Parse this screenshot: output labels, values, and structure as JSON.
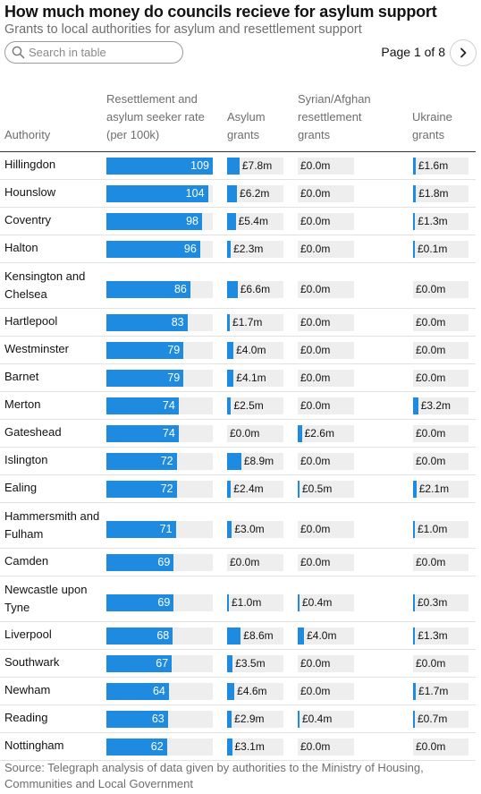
{
  "title": "How much money do councils recieve for asylum support",
  "subtitle": "Grants to local authorities for asylum and resettlement support",
  "search": {
    "placeholder": "Search in table"
  },
  "pagination": {
    "label": "Page 1 of 8"
  },
  "icons": {
    "search": "search-icon",
    "next": "chevron-right-icon"
  },
  "colors": {
    "bar": "#1f8be0",
    "track": "#eeeeee",
    "text": "#121212",
    "muted": "#6e6e6e"
  },
  "columns": {
    "authority": "Authority",
    "rate": [
      "Resettlement and",
      "asylum seeker rate",
      "(per 100k)"
    ],
    "asylum": [
      "Asylum",
      "grants"
    ],
    "syrian": [
      "Syrian/Afghan",
      "resettlement",
      "grants"
    ],
    "ukraine": [
      "Ukraine",
      "grants"
    ]
  },
  "table": {
    "rate_max": 109,
    "grant_max": 9.0,
    "rows": [
      {
        "authority": "Hillingdon",
        "rate": 109,
        "asylum": 7.8,
        "syrian": 0.0,
        "ukraine": 1.6
      },
      {
        "authority": "Hounslow",
        "rate": 104,
        "asylum": 6.2,
        "syrian": 0.0,
        "ukraine": 1.8
      },
      {
        "authority": "Coventry",
        "rate": 98,
        "asylum": 5.4,
        "syrian": 0.0,
        "ukraine": 1.3
      },
      {
        "authority": "Halton",
        "rate": 96,
        "asylum": 2.3,
        "syrian": 0.0,
        "ukraine": 0.1
      },
      {
        "authority": "Kensington and Chelsea",
        "rate": 86,
        "asylum": 6.6,
        "syrian": 0.0,
        "ukraine": 0.0
      },
      {
        "authority": "Hartlepool",
        "rate": 83,
        "asylum": 1.7,
        "syrian": 0.0,
        "ukraine": 0.0
      },
      {
        "authority": "Westminster",
        "rate": 79,
        "asylum": 4.0,
        "syrian": 0.0,
        "ukraine": 0.0
      },
      {
        "authority": "Barnet",
        "rate": 79,
        "asylum": 4.1,
        "syrian": 0.0,
        "ukraine": 0.0
      },
      {
        "authority": "Merton",
        "rate": 74,
        "asylum": 2.5,
        "syrian": 0.0,
        "ukraine": 3.2
      },
      {
        "authority": "Gateshead",
        "rate": 74,
        "asylum": 0.0,
        "syrian": 2.6,
        "ukraine": 0.0
      },
      {
        "authority": "Islington",
        "rate": 72,
        "asylum": 8.9,
        "syrian": 0.0,
        "ukraine": 0.0
      },
      {
        "authority": "Ealing",
        "rate": 72,
        "asylum": 2.4,
        "syrian": 0.5,
        "ukraine": 2.1
      },
      {
        "authority": "Hammersmith and Fulham",
        "rate": 71,
        "asylum": 3.0,
        "syrian": 0.0,
        "ukraine": 1.0
      },
      {
        "authority": "Camden",
        "rate": 69,
        "asylum": 0.0,
        "syrian": 0.0,
        "ukraine": 0.0
      },
      {
        "authority": "Newcastle upon Tyne",
        "rate": 69,
        "asylum": 1.0,
        "syrian": 0.4,
        "ukraine": 0.3
      },
      {
        "authority": "Liverpool",
        "rate": 68,
        "asylum": 8.6,
        "syrian": 4.0,
        "ukraine": 1.3
      },
      {
        "authority": "Southwark",
        "rate": 67,
        "asylum": 3.5,
        "syrian": 0.0,
        "ukraine": 0.0
      },
      {
        "authority": "Newham",
        "rate": 64,
        "asylum": 4.6,
        "syrian": 0.0,
        "ukraine": 1.7
      },
      {
        "authority": "Reading",
        "rate": 63,
        "asylum": 2.9,
        "syrian": 0.4,
        "ukraine": 0.7
      },
      {
        "authority": "Nottingham",
        "rate": 62,
        "asylum": 3.1,
        "syrian": 0.0,
        "ukraine": 0.0
      }
    ]
  },
  "source": "Source: Telegraph analysis of data given by authorities to the Ministry of Housing, Communities and Local Government"
}
